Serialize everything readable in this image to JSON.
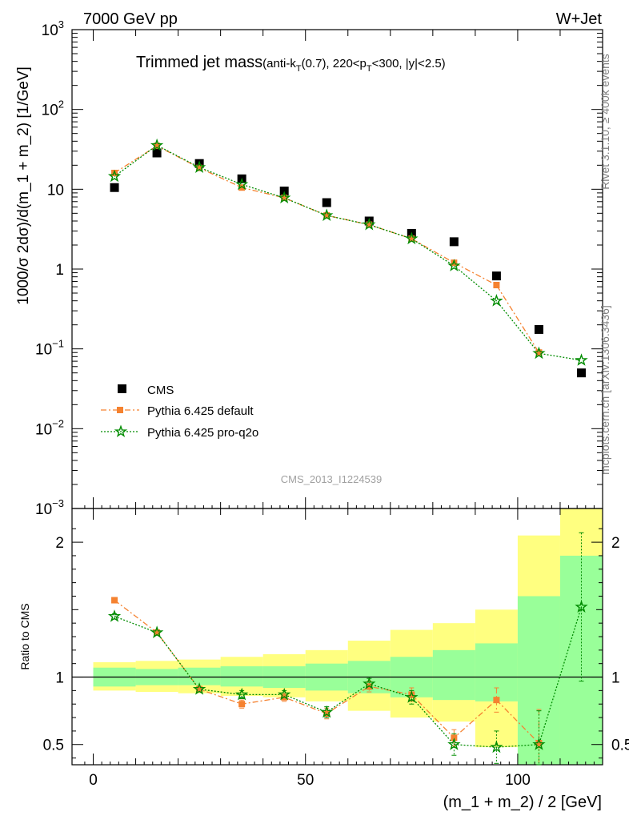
{
  "header": {
    "left": "7000 GeV pp",
    "right": "W+Jet"
  },
  "chart_data": {
    "type": "scatter",
    "title_main": "Trimmed jet mass",
    "title_sub": {
      "a": "(anti-k",
      "a_sub": "T",
      "b": "(0.7), 220<p",
      "b_sub": "T",
      "c": "<300, |y|<2.5)"
    },
    "watermark": "CMS_2013_I1224539",
    "side_label_top": "Rivet 3.1.10, ≥ 400k events",
    "side_label_bottom": "mcplots.cern.ch [arXiv:1306.3436]",
    "ylabel_main": "1000/σ 2dσ)/d(m_1 + m_2) [1/GeV]",
    "ylabel_ratio": "Ratio to CMS",
    "xlabel": "(m_1 + m_2) / 2 [GeV]",
    "x_range": [
      -5,
      120
    ],
    "y_main_range": [
      0.001,
      1000
    ],
    "y_main_scale": "log",
    "y_ratio_range": [
      0.35,
      2.25
    ],
    "x_ticks": [
      "0",
      "50",
      "100"
    ],
    "y_main_ticks": [
      {
        "base": "10",
        "exp": "3"
      },
      {
        "base": "10",
        "exp": "2"
      },
      {
        "base": "10",
        "exp": ""
      },
      {
        "base": "1",
        "exp": ""
      },
      {
        "base": "10",
        "exp": "−1"
      },
      {
        "base": "10",
        "exp": "−2"
      },
      {
        "base": "10",
        "exp": "−3"
      }
    ],
    "y_ratio_ticks": [
      "2",
      "1",
      "0.5"
    ],
    "bins": [
      [
        0,
        10
      ],
      [
        10,
        20
      ],
      [
        20,
        30
      ],
      [
        30,
        40
      ],
      [
        40,
        50
      ],
      [
        50,
        60
      ],
      [
        60,
        70
      ],
      [
        70,
        80
      ],
      [
        80,
        90
      ],
      [
        90,
        100
      ],
      [
        100,
        110
      ],
      [
        110,
        120
      ]
    ],
    "band_inner": [
      [
        0.93,
        1.07
      ],
      [
        0.94,
        1.06
      ],
      [
        0.94,
        1.07
      ],
      [
        0.93,
        1.08
      ],
      [
        0.92,
        1.08
      ],
      [
        0.9,
        1.1
      ],
      [
        0.88,
        1.12
      ],
      [
        0.85,
        1.15
      ],
      [
        0.83,
        1.2
      ],
      [
        0.82,
        1.25
      ],
      [
        0.3,
        1.6
      ],
      [
        0.3,
        1.9
      ]
    ],
    "band_outer": [
      [
        0.9,
        1.11
      ],
      [
        0.89,
        1.12
      ],
      [
        0.88,
        1.13
      ],
      [
        0.86,
        1.15
      ],
      [
        0.85,
        1.17
      ],
      [
        0.82,
        1.2
      ],
      [
        0.75,
        1.27
      ],
      [
        0.7,
        1.35
      ],
      [
        0.67,
        1.4
      ],
      [
        0.48,
        1.5
      ],
      [
        0.42,
        2.05
      ],
      [
        0.3,
        2.4
      ]
    ],
    "series": [
      {
        "name": "CMS",
        "color": "#000000",
        "marker": "square",
        "x": [
          5,
          15,
          25,
          35,
          45,
          55,
          65,
          75,
          85,
          95,
          105,
          115
        ],
        "y": [
          10.5,
          28.5,
          21.0,
          13.5,
          9.5,
          6.8,
          4.0,
          2.8,
          2.2,
          0.82,
          0.175,
          0.05
        ]
      },
      {
        "name": "Pythia 6.425 default",
        "color": "#f58230",
        "marker": "square-small",
        "line": "dashdot",
        "x": [
          5,
          15,
          25,
          35,
          45,
          55,
          65,
          75,
          85,
          95,
          105
        ],
        "y": [
          16.0,
          35.0,
          18.5,
          10.5,
          7.8,
          4.7,
          3.6,
          2.4,
          1.2,
          0.63,
          0.09
        ],
        "ratio": [
          1.57,
          1.33,
          0.91,
          0.8,
          0.85,
          0.73,
          0.93,
          0.87,
          0.55,
          0.83,
          0.51
        ],
        "ratio_err": [
          0.02,
          0.01,
          0.02,
          0.03,
          0.03,
          0.04,
          0.04,
          0.05,
          0.06,
          0.09,
          0.25
        ]
      },
      {
        "name": "Pythia 6.425 pro-q2o",
        "color": "#008c00",
        "marker": "star",
        "line": "dotted",
        "x": [
          5,
          15,
          25,
          35,
          45,
          55,
          65,
          75,
          85,
          95,
          105,
          115
        ],
        "y": [
          14.5,
          35.5,
          18.8,
          11.5,
          7.8,
          4.7,
          3.6,
          2.4,
          1.1,
          0.4,
          0.088,
          0.072
        ],
        "ratio": [
          1.45,
          1.33,
          0.91,
          0.87,
          0.87,
          0.74,
          0.95,
          0.85,
          0.5,
          0.48,
          0.5,
          1.52
        ],
        "ratio_err": [
          0.02,
          0.01,
          0.02,
          0.03,
          0.03,
          0.04,
          0.04,
          0.05,
          0.08,
          0.12,
          0.25,
          0.55
        ]
      }
    ]
  }
}
